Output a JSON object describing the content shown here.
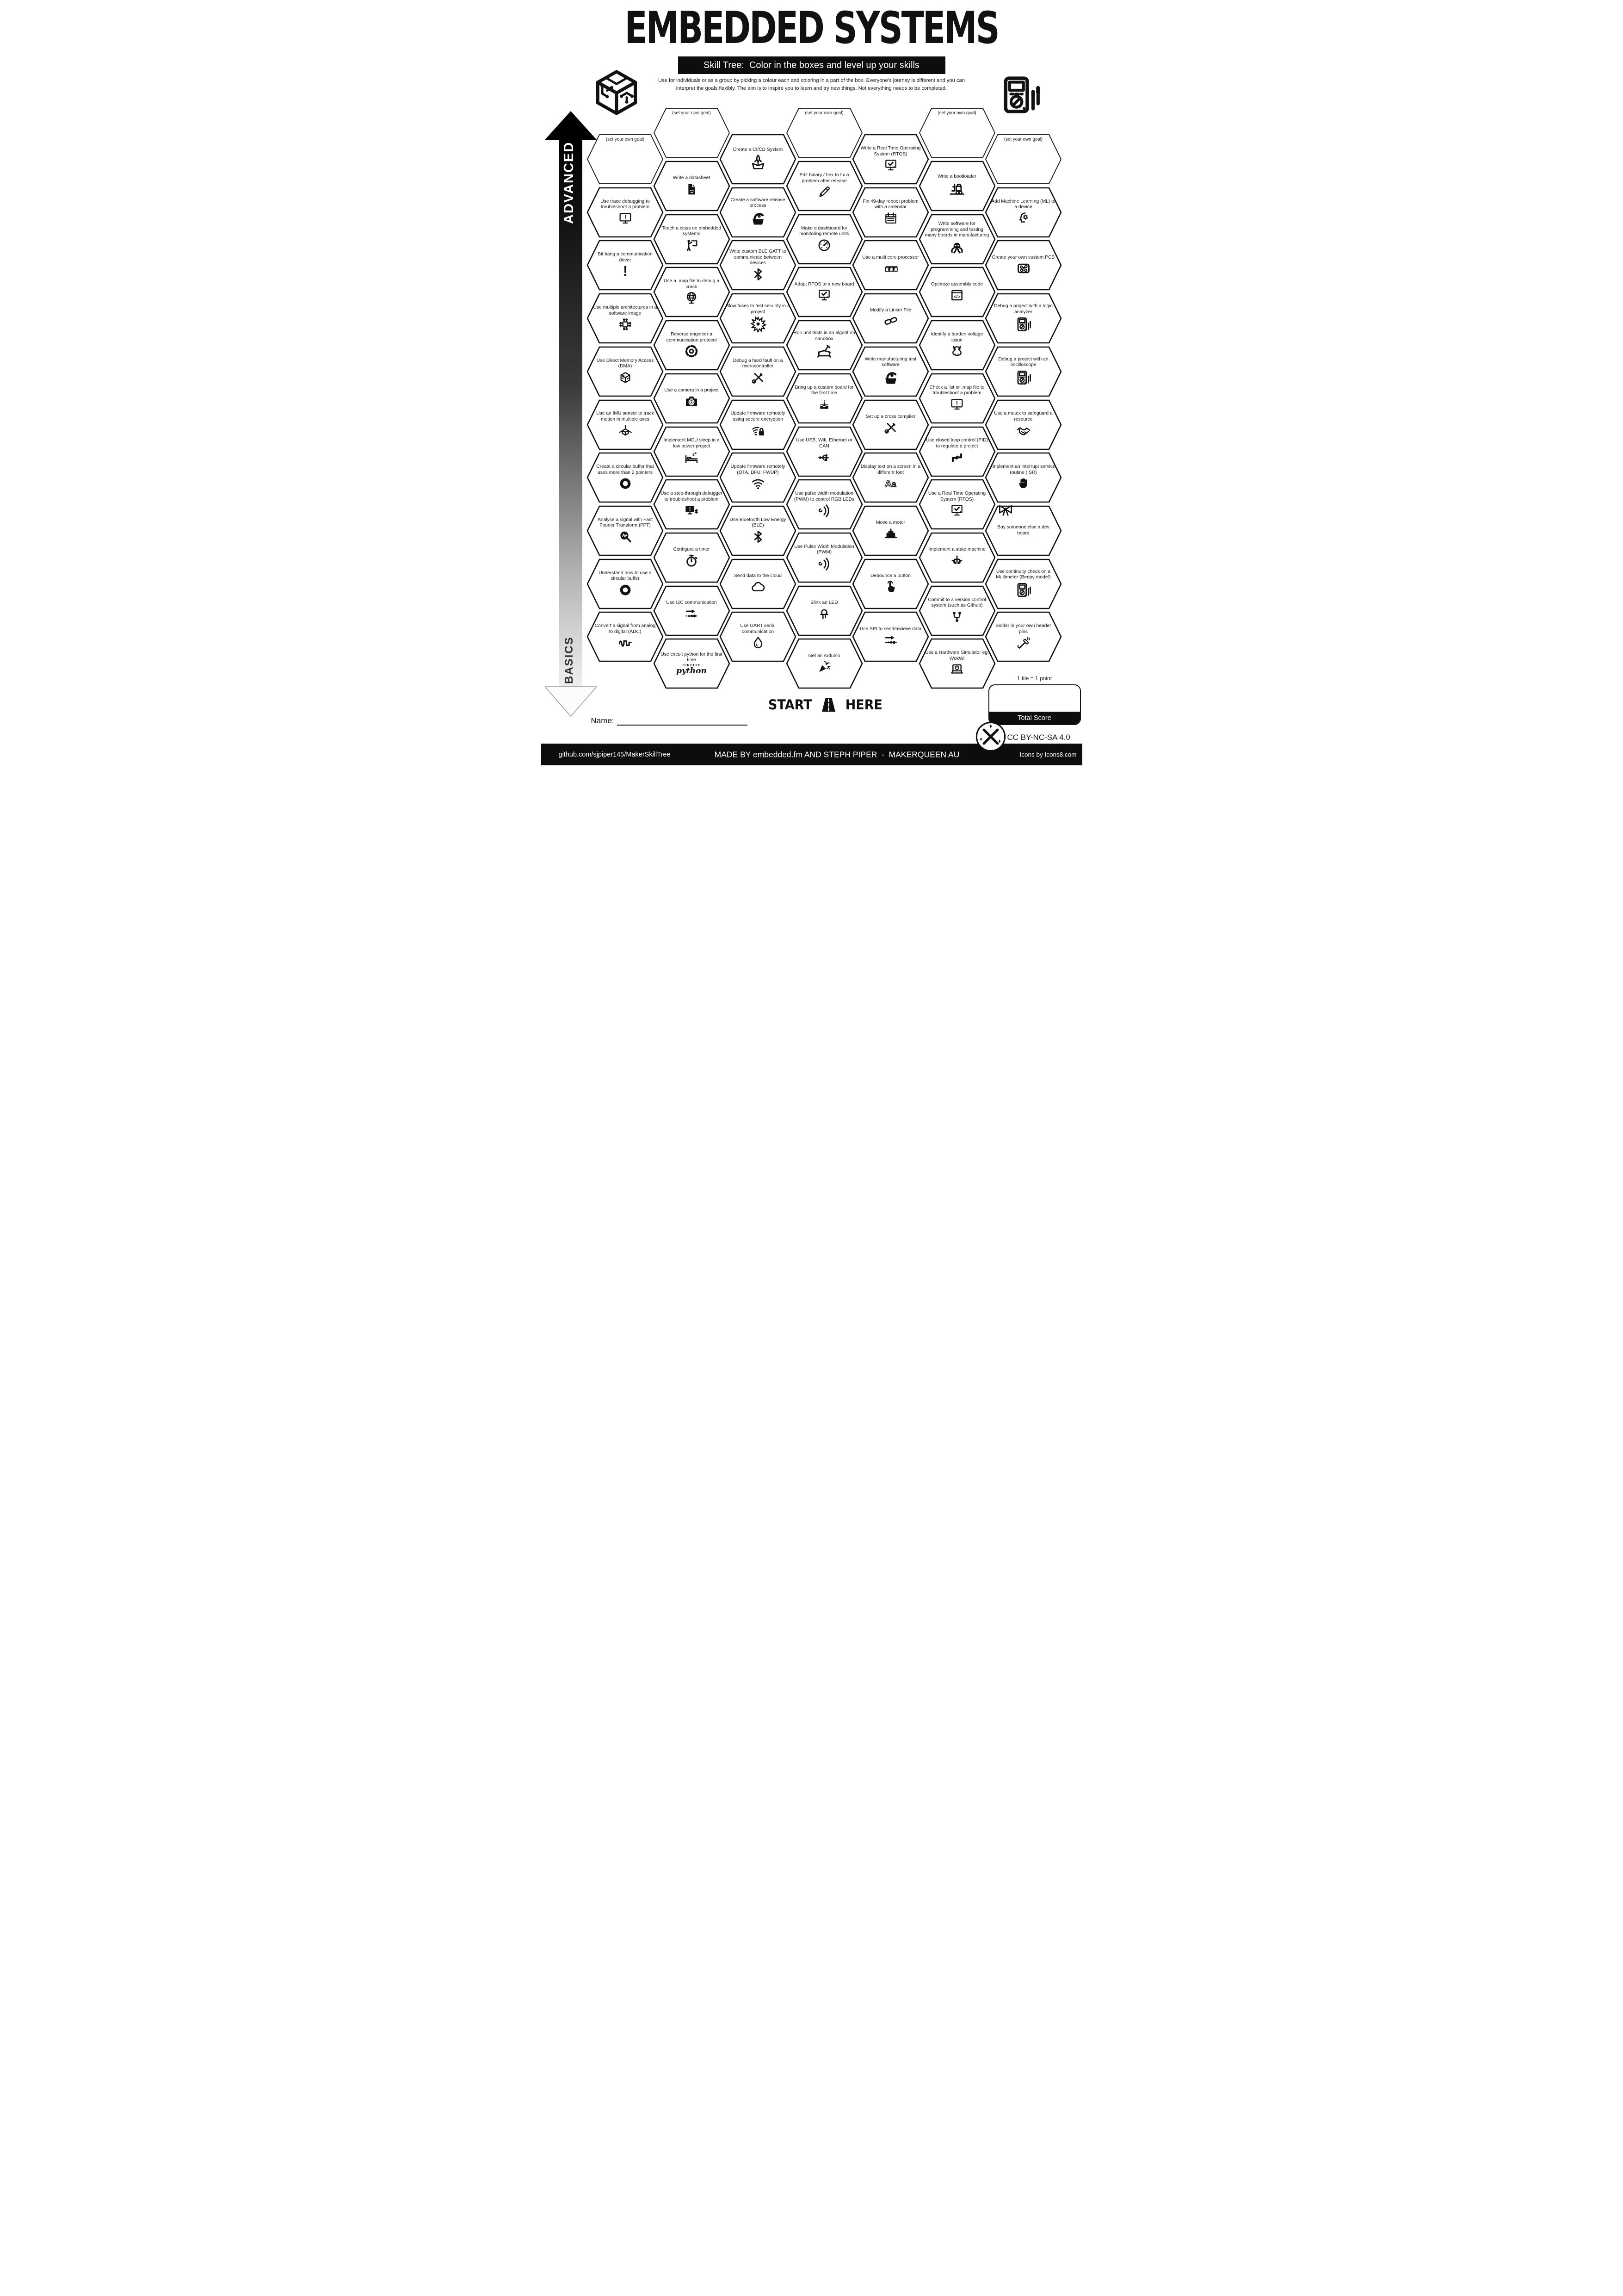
{
  "header": {
    "title": "EMBEDDED SYSTEMS",
    "subtitle": "Skill Tree:  Color in the boxes and level up your skills",
    "description_line1": "Use for individuals or as a group by picking a colour each and coloring in a part of the box.  Everyone's journey is different and you can",
    "description_line2": "interpret the goals flexibly.  The aim is to inspire you to learn and try new things. Not everything needs to be completed."
  },
  "axis": {
    "advanced_label": "ADVANCED",
    "basics_label": "BASICS"
  },
  "start_here": {
    "start": "START",
    "here": "HERE"
  },
  "scoring": {
    "tile_note": "1 tile = 1 point",
    "total_label": "Total Score"
  },
  "name_label": "Name:",
  "license": "CC BY-NC-SA 4.0",
  "footer": {
    "left": "github.com/sjpiper145/MakerSkillTree",
    "center": "MADE BY embedded.fm AND STEPH PIPER  -  MAKERQUEEN AU",
    "right": "Icons by Icons8.com"
  },
  "circuitpython_logo": {
    "top": "CIRCUIT",
    "bottom": "python"
  },
  "columns": [
    {
      "offset": "low",
      "tiles": [
        {
          "label": "(set your own goal)",
          "icon": null,
          "goal": true
        },
        {
          "label": "Use trace debugging to troubleshoot a problem",
          "icon": "monitor-warning"
        },
        {
          "label": "Bit bang a communication driver",
          "icon": "exclamation"
        },
        {
          "label": "Use multiple architectures in a software image",
          "icon": "chip-network"
        },
        {
          "label": "Use Direct Memory Access (DMA)",
          "icon": "circuit-cube"
        },
        {
          "label": "Use an IMU sensor to track motion in multiple axes",
          "icon": "axes-cube"
        },
        {
          "label": "Create a circular buffer that uses more than 2 pointers",
          "icon": "circular-buffer"
        },
        {
          "label": "Analyse a signal with Fast Fourier Transform (FFT)",
          "icon": "fft-magnifier"
        },
        {
          "label": "Understand how to use a circular buffer",
          "icon": "circular-buffer"
        },
        {
          "label": "Convert a signal from analog to digital (ADC)",
          "icon": "adc-signal"
        }
      ]
    },
    {
      "offset": "high",
      "tiles": [
        {
          "label": "(set your own goal)",
          "icon": null,
          "goal": true
        },
        {
          "label": "Write a datasheet",
          "icon": "document"
        },
        {
          "label": "Teach a class on embedded systems",
          "icon": "teacher"
        },
        {
          "label": "Use a .map file to debug a crash",
          "icon": "globe"
        },
        {
          "label": "Reverse engineer a communication protocol",
          "icon": "protocol-disc"
        },
        {
          "label": "Use a camera in a project",
          "icon": "camera"
        },
        {
          "label": "Implement MCU sleep in a low power project",
          "icon": "sleep-bed"
        },
        {
          "label": "Use a step-through debugger to troubleshoot a problem",
          "icon": "monitor-debug"
        },
        {
          "label": "Configure a timer",
          "icon": "stopwatch"
        },
        {
          "label": "Use I2C communication",
          "icon": "bus-arrow"
        },
        {
          "label": "Use circuit python for the first time",
          "icon": "circuitpython-logo"
        }
      ]
    },
    {
      "offset": "low",
      "tiles": [
        {
          "label": "Create a CI/CD System",
          "icon": "rocket-box"
        },
        {
          "label": "Create a software release process",
          "icon": "release-box"
        },
        {
          "label": "Write custom BLE GATT to communicate between devices",
          "icon": "bluetooth"
        },
        {
          "label": "Blow fuses to test security in a project",
          "icon": "explosion"
        },
        {
          "label": "Debug a hard fault on a microcontroller",
          "icon": "crossed-tools"
        },
        {
          "label": "Update firmware remotely using secure encryption",
          "icon": "wifi-lock"
        },
        {
          "label": "Update firmware remotely (OTA, DFU, FWUP)",
          "icon": "wifi"
        },
        {
          "label": "Use Bluetooth Low Energy (BLE)",
          "icon": "bluetooth"
        },
        {
          "label": "Send data to the cloud",
          "icon": "cloud"
        },
        {
          "label": "Use UART serial communication",
          "icon": "water-drop"
        }
      ]
    },
    {
      "offset": "high",
      "tiles": [
        {
          "label": "(set your own goal)",
          "icon": null,
          "goal": true
        },
        {
          "label": "Edit binary / hex to fix a problem after release",
          "icon": "pencil"
        },
        {
          "label": "Make a dashboard for monitoring remote units",
          "icon": "gauge"
        },
        {
          "label": "Adapt RTOS to a new board",
          "icon": "monitor-check"
        },
        {
          "label": "Run unit tests in an algorithm sandbox",
          "icon": "sandbox"
        },
        {
          "label": "Bring up a custom board for the first time",
          "icon": "cake"
        },
        {
          "label": "Use USB, Wifi, Ethernet or CAN",
          "icon": "usb"
        },
        {
          "label": "Use pulse width modulation (PWM) to control RGB LEDs",
          "icon": "pwm-waves"
        },
        {
          "label": "Use Pulse Width Modulation (PWM)",
          "icon": "pwm-waves"
        },
        {
          "label": "Blink an LED",
          "icon": "led"
        },
        {
          "label": "Get an Arduino",
          "icon": "party-popper"
        }
      ]
    },
    {
      "offset": "low",
      "tiles": [
        {
          "label": "Write a Real Time Operating System (RTOS)",
          "icon": "monitor-check"
        },
        {
          "label": "Fix 49-day reboot problem with a calendar",
          "icon": "calendar"
        },
        {
          "label": "Use a multi core processor",
          "icon": "cubes"
        },
        {
          "label": "Modify a Linker File",
          "icon": "chain-link"
        },
        {
          "label": "Write manufacturing test software",
          "icon": "release-box"
        },
        {
          "label": "Set up a cross compiler",
          "icon": "crossed-tools"
        },
        {
          "label": "Display text on a screen in a different font",
          "icon": "font-aa"
        },
        {
          "label": "Move a motor",
          "icon": "motor"
        },
        {
          "label": "Debounce a button",
          "icon": "finger-press"
        },
        {
          "label": "Use SPI to send/recieve data",
          "icon": "bus-arrow"
        }
      ]
    },
    {
      "offset": "high",
      "tiles": [
        {
          "label": "(set your own goal)",
          "icon": null,
          "goal": true
        },
        {
          "label": "Write a bootloader",
          "icon": "forklift"
        },
        {
          "label": "Write software for programming and testing many boards in manufacturing",
          "icon": "octopus"
        },
        {
          "label": "Optimize assembly code",
          "icon": "code-window"
        },
        {
          "label": "Identify a burden voltage issue",
          "icon": "donkey"
        },
        {
          "label": "Check a .lst or .map file to troubleshoot a problem",
          "icon": "monitor-warning"
        },
        {
          "label": "Use closed loop control (PID) to regulate a project",
          "icon": "pid-arrows"
        },
        {
          "label": "Use a Real Time Operating System (RTOS)",
          "icon": "monitor-check"
        },
        {
          "label": "Implement a state machine",
          "icon": "robot"
        },
        {
          "label": "Commit to a version control system (such as Github)",
          "icon": "git-branch"
        },
        {
          "label": "Use a Hardware Simulator eg. WokWi",
          "icon": "laptop-sim"
        }
      ]
    },
    {
      "offset": "low",
      "tiles": [
        {
          "label": "(set your own goal)",
          "icon": null,
          "goal": true
        },
        {
          "label": "Add Machine Learning (ML) to a device",
          "icon": "head-gear"
        },
        {
          "label": "Create your own custom PCB",
          "icon": "pcb"
        },
        {
          "label": "Debug a project with a logic analyzer",
          "icon": "multimeter-probes"
        },
        {
          "label": "Debug a project with an oscilloscope",
          "icon": "multimeter-probes"
        },
        {
          "label": "Use a mutex to safeguard a resource",
          "icon": "handshake"
        },
        {
          "label": "Implement an interrupt service routine (ISR)",
          "icon": "stop-hand"
        },
        {
          "label": "Buy someone else a dev board",
          "icon": "gift-bow",
          "icon_pos": "corner"
        },
        {
          "label": "Use continuity check on a Multimeter (Beepy mode!)",
          "icon": "multimeter-probes"
        },
        {
          "label": "Solder in your own header pins",
          "icon": "soldering-iron"
        }
      ]
    }
  ]
}
